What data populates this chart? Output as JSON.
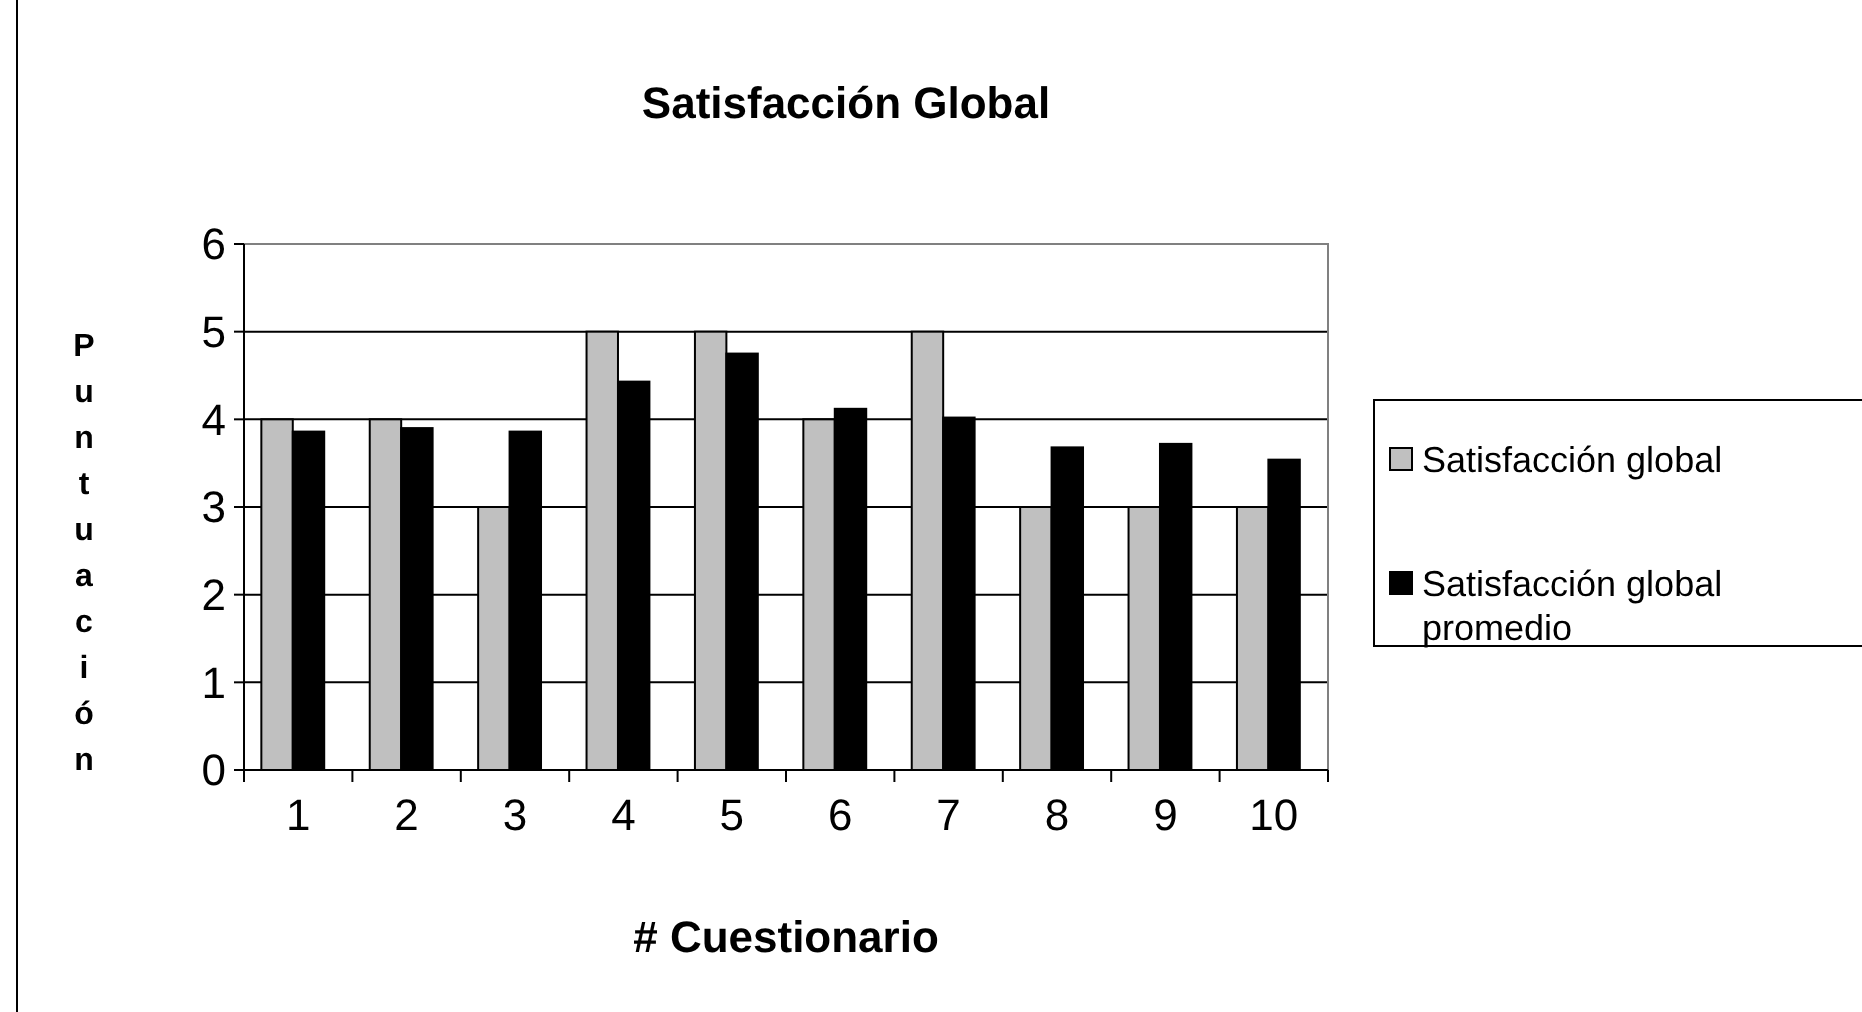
{
  "chart_data": {
    "type": "bar",
    "title": "Satisfacción Global",
    "xlabel": "# Cuestionario",
    "ylabel": "Puntuación",
    "categories": [
      "1",
      "2",
      "3",
      "4",
      "5",
      "6",
      "7",
      "8",
      "9",
      "10"
    ],
    "series": [
      {
        "name": "Satisfacción global",
        "color": "#c0c0c0",
        "values": [
          4,
          4,
          3,
          5,
          5,
          4,
          5,
          3,
          3,
          3
        ]
      },
      {
        "name": "Satisfacción global promedio",
        "color": "#000000",
        "values": [
          3.86,
          3.9,
          3.86,
          4.43,
          4.75,
          4.12,
          4.02,
          3.68,
          3.72,
          3.54
        ]
      }
    ],
    "ylim": [
      0,
      6
    ],
    "yticks": [
      0,
      1,
      2,
      3,
      4,
      5,
      6
    ],
    "grid": "y",
    "legend": "right"
  }
}
